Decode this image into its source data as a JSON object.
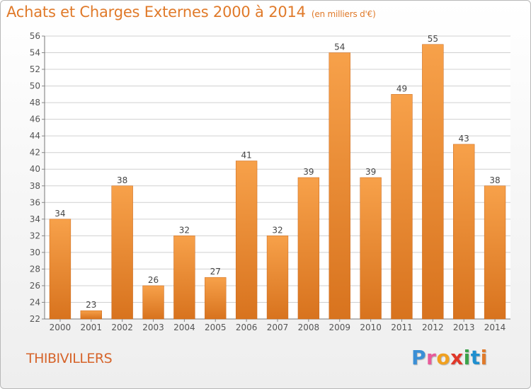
{
  "header": {
    "title": "Achats et Charges Externes 2000 à 2014",
    "unit": "(en milliers d'€)"
  },
  "footer": {
    "commune": "THIBIVILLERS",
    "logo_letters": [
      "P",
      "r",
      "o",
      "x",
      "i",
      "t",
      "i"
    ],
    "logo_colors": [
      "#3a8fd6",
      "#e85a9a",
      "#f0a020",
      "#e0382a",
      "#3aa34a",
      "#1f8fcf",
      "#e07a2a"
    ]
  },
  "chart_data": {
    "type": "bar",
    "title": "Achats et Charges Externes 2000 à 2014",
    "subtitle": "(en milliers d'€)",
    "categories": [
      "2000",
      "2001",
      "2002",
      "2003",
      "2004",
      "2005",
      "2006",
      "2007",
      "2008",
      "2009",
      "2010",
      "2011",
      "2012",
      "2013",
      "2014"
    ],
    "values": [
      34,
      23,
      38,
      26,
      32,
      27,
      41,
      32,
      39,
      54,
      39,
      49,
      55,
      43,
      38
    ],
    "ylim": [
      22,
      56
    ],
    "yticks": [
      22,
      24,
      26,
      28,
      30,
      32,
      34,
      36,
      38,
      40,
      42,
      44,
      46,
      48,
      50,
      52,
      54,
      56
    ],
    "grid": true,
    "bar_color_top": "#f7a14a",
    "bar_color_bottom": "#d8731e",
    "grid_color": "#d0d0d0"
  }
}
